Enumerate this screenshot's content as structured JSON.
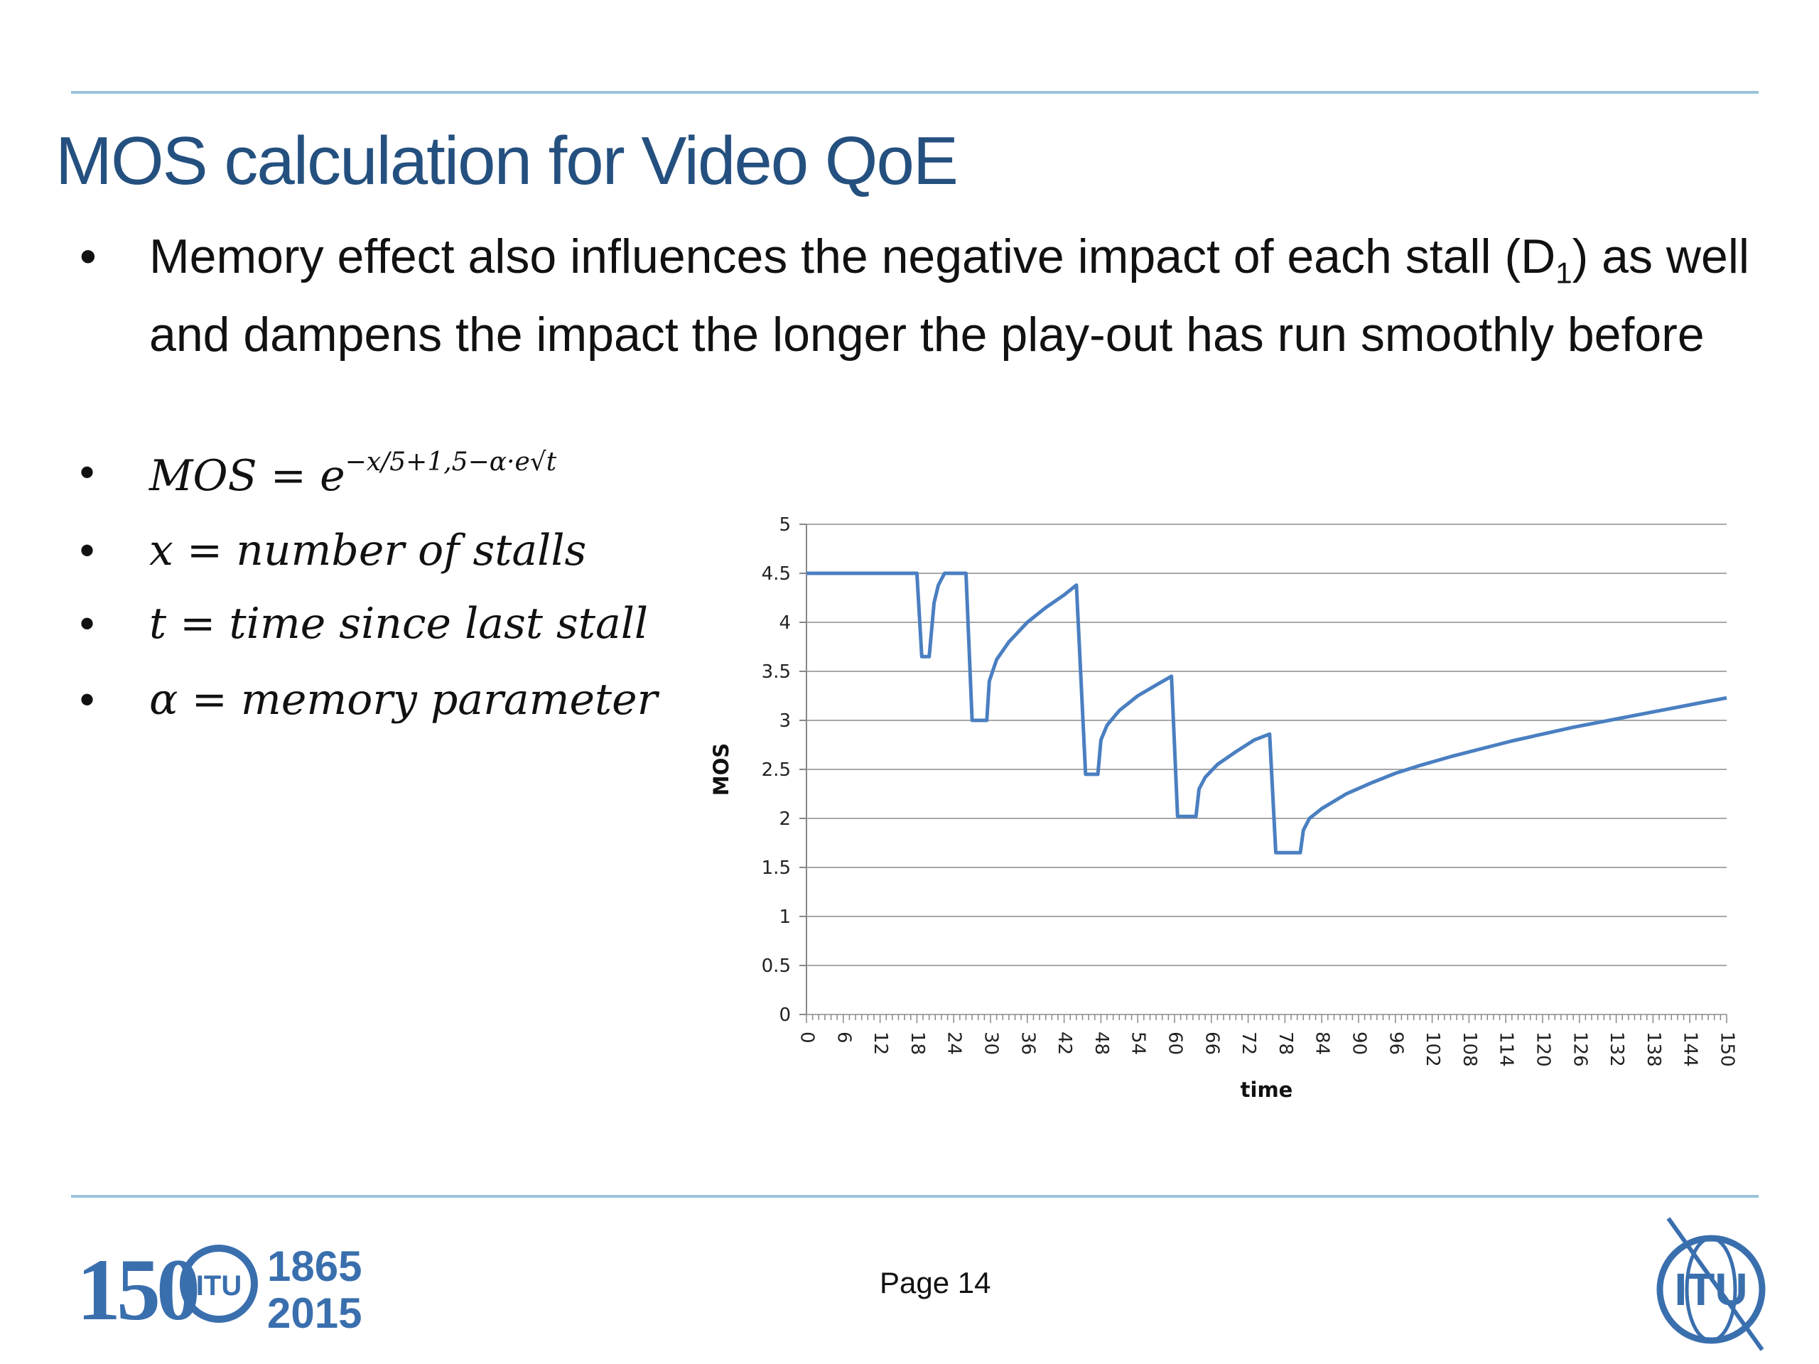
{
  "slide": {
    "title": "MOS calculation for Video QoE",
    "bullet_main": {
      "text_before": "Memory effect also influences the negative impact of each stall (D",
      "subscript": "1",
      "text_after": ") as well and dampens the impact the longer the play-out has run smoothly before"
    },
    "formula": {
      "lhs": "MOS = e",
      "exponent": "−x/5+1,5−α·e√t"
    },
    "definitions": [
      "x = number of stalls",
      "t = time since last stall",
      "α = memory parameter"
    ],
    "bullet_symbol": "•",
    "page_label": "Page 14",
    "logo_left": {
      "number": "150",
      "emblem": "ITU",
      "year_top": "1865",
      "year_bottom": "2015"
    },
    "logo_right": {
      "emblem": "ITU"
    }
  },
  "colors": {
    "accent": "#24507f",
    "line": "#4a7fc1",
    "rule": "#9cc3da",
    "grid": "#a8a8a8"
  },
  "chart_data": {
    "type": "line",
    "xlabel": "time",
    "ylabel": "MOS",
    "ylim": [
      0,
      5
    ],
    "xlim": [
      0,
      150
    ],
    "yticks": [
      0,
      0.5,
      1,
      1.5,
      2,
      2.5,
      3,
      3.5,
      4,
      4.5,
      5
    ],
    "xticks": [
      0,
      6,
      12,
      18,
      24,
      30,
      36,
      42,
      48,
      54,
      60,
      66,
      72,
      78,
      84,
      90,
      96,
      102,
      108,
      114,
      120,
      126,
      132,
      138,
      144,
      150
    ],
    "grid": true,
    "series": [
      {
        "x": [
          0,
          18,
          18.8,
          20,
          20.8,
          21.5,
          22.5,
          24,
          26,
          27,
          29,
          29.4,
          29.8,
          31,
          33,
          36,
          39,
          42,
          44,
          45.5,
          46,
          47.5,
          48,
          49,
          51,
          54,
          57,
          59.5,
          60.5,
          63.5,
          64,
          65,
          67,
          70,
          73,
          75.5,
          76.5,
          80.5,
          81,
          82,
          84,
          88,
          92,
          96,
          100,
          105,
          110,
          115,
          120,
          125,
          130,
          135,
          140,
          145,
          150
        ],
        "y": [
          4.5,
          4.5,
          3.65,
          3.65,
          4.2,
          4.38,
          4.5,
          4.5,
          4.5,
          3.0,
          3.0,
          3.0,
          3.4,
          3.62,
          3.8,
          4.0,
          4.15,
          4.28,
          4.38,
          2.45,
          2.45,
          2.45,
          2.8,
          2.95,
          3.1,
          3.25,
          3.36,
          3.45,
          2.02,
          2.02,
          2.3,
          2.42,
          2.55,
          2.68,
          2.8,
          2.86,
          1.65,
          1.65,
          1.88,
          2.0,
          2.1,
          2.25,
          2.36,
          2.46,
          2.54,
          2.63,
          2.71,
          2.79,
          2.86,
          2.93,
          2.99,
          3.05,
          3.11,
          3.17,
          3.23
        ]
      }
    ]
  }
}
